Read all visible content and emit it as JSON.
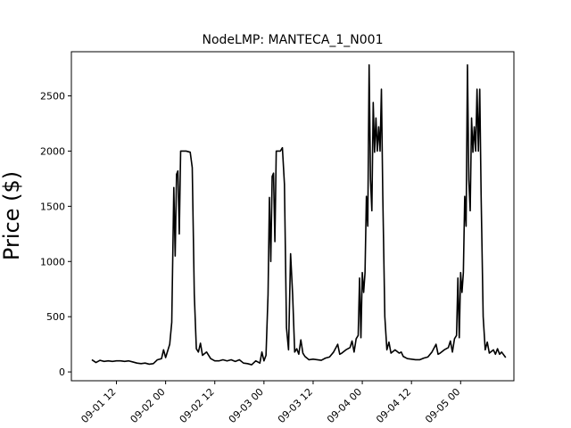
{
  "chart_data": {
    "type": "line",
    "title": "NodeLMP: MANTECA_1_N001",
    "xlabel": "",
    "ylabel": "Price ($)",
    "xlim": [
      "2020-09-01 01:00",
      "2020-09-05 13:00"
    ],
    "ylim": [
      -80,
      2900
    ],
    "yticks": [
      0,
      500,
      1000,
      1500,
      2000,
      2500
    ],
    "xticks": [
      "2020-09-01 12:00",
      "2020-09-02 00:00",
      "2020-09-02 12:00",
      "2020-09-03 00:00",
      "2020-09-03 12:00",
      "2020-09-04 00:00",
      "2020-09-04 12:00",
      "2020-09-05 00:00"
    ],
    "xtick_labels": [
      "09-01 12",
      "09-02 00",
      "09-02 12",
      "09-03 00",
      "09-03 12",
      "09-04 00",
      "09-04 12",
      "09-05 00"
    ],
    "grid": false,
    "series": [
      {
        "color": "#000000",
        "points": [
          [
            "2020-09-01 06:00",
            110
          ],
          [
            "2020-09-01 07:00",
            85
          ],
          [
            "2020-09-01 08:00",
            105
          ],
          [
            "2020-09-01 09:00",
            95
          ],
          [
            "2020-09-01 10:00",
            100
          ],
          [
            "2020-09-01 11:00",
            95
          ],
          [
            "2020-09-01 12:00",
            100
          ],
          [
            "2020-09-01 13:00",
            100
          ],
          [
            "2020-09-01 14:00",
            95
          ],
          [
            "2020-09-01 15:00",
            100
          ],
          [
            "2020-09-01 16:00",
            90
          ],
          [
            "2020-09-01 17:00",
            80
          ],
          [
            "2020-09-01 18:00",
            75
          ],
          [
            "2020-09-01 19:00",
            80
          ],
          [
            "2020-09-01 20:00",
            70
          ],
          [
            "2020-09-01 21:00",
            75
          ],
          [
            "2020-09-01 22:00",
            110
          ],
          [
            "2020-09-01 23:00",
            120
          ],
          [
            "2020-09-01 23:30",
            200
          ],
          [
            "2020-09-02 00:00",
            130
          ],
          [
            "2020-09-02 01:00",
            250
          ],
          [
            "2020-09-02 01:30",
            450
          ],
          [
            "2020-09-02 02:00",
            1670
          ],
          [
            "2020-09-02 02:20",
            1050
          ],
          [
            "2020-09-02 02:40",
            1790
          ],
          [
            "2020-09-02 03:00",
            1820
          ],
          [
            "2020-09-02 03:20",
            1250
          ],
          [
            "2020-09-02 03:40",
            2000
          ],
          [
            "2020-09-02 05:00",
            2000
          ],
          [
            "2020-09-02 06:00",
            1990
          ],
          [
            "2020-09-02 06:30",
            1850
          ],
          [
            "2020-09-02 07:00",
            700
          ],
          [
            "2020-09-02 07:30",
            210
          ],
          [
            "2020-09-02 08:00",
            180
          ],
          [
            "2020-09-02 08:30",
            260
          ],
          [
            "2020-09-02 09:00",
            150
          ],
          [
            "2020-09-02 10:00",
            180
          ],
          [
            "2020-09-02 11:00",
            120
          ],
          [
            "2020-09-02 12:00",
            100
          ],
          [
            "2020-09-02 13:00",
            100
          ],
          [
            "2020-09-02 14:00",
            110
          ],
          [
            "2020-09-02 15:00",
            100
          ],
          [
            "2020-09-02 16:00",
            110
          ],
          [
            "2020-09-02 17:00",
            95
          ],
          [
            "2020-09-02 18:00",
            110
          ],
          [
            "2020-09-02 19:00",
            80
          ],
          [
            "2020-09-02 20:00",
            75
          ],
          [
            "2020-09-02 21:00",
            65
          ],
          [
            "2020-09-02 22:00",
            100
          ],
          [
            "2020-09-02 23:00",
            80
          ],
          [
            "2020-09-02 23:30",
            180
          ],
          [
            "2020-09-03 00:00",
            100
          ],
          [
            "2020-09-03 00:30",
            150
          ],
          [
            "2020-09-03 01:00",
            700
          ],
          [
            "2020-09-03 01:20",
            1580
          ],
          [
            "2020-09-03 01:40",
            1000
          ],
          [
            "2020-09-03 02:00",
            1770
          ],
          [
            "2020-09-03 02:20",
            1800
          ],
          [
            "2020-09-03 02:40",
            1180
          ],
          [
            "2020-09-03 03:00",
            2000
          ],
          [
            "2020-09-03 04:00",
            2000
          ],
          [
            "2020-09-03 04:30",
            2030
          ],
          [
            "2020-09-03 05:00",
            1700
          ],
          [
            "2020-09-03 05:30",
            400
          ],
          [
            "2020-09-03 06:00",
            200
          ],
          [
            "2020-09-03 06:30",
            1070
          ],
          [
            "2020-09-03 07:00",
            700
          ],
          [
            "2020-09-03 07:30",
            180
          ],
          [
            "2020-09-03 08:00",
            210
          ],
          [
            "2020-09-03 08:30",
            160
          ],
          [
            "2020-09-03 09:00",
            290
          ],
          [
            "2020-09-03 09:30",
            170
          ],
          [
            "2020-09-03 10:00",
            140
          ],
          [
            "2020-09-03 11:00",
            110
          ],
          [
            "2020-09-03 12:00",
            115
          ],
          [
            "2020-09-03 13:00",
            110
          ],
          [
            "2020-09-03 14:00",
            105
          ],
          [
            "2020-09-03 15:00",
            125
          ],
          [
            "2020-09-03 16:00",
            135
          ],
          [
            "2020-09-03 17:00",
            180
          ],
          [
            "2020-09-03 18:00",
            250
          ],
          [
            "2020-09-03 18:30",
            160
          ],
          [
            "2020-09-03 19:00",
            170
          ],
          [
            "2020-09-03 20:00",
            200
          ],
          [
            "2020-09-03 21:00",
            220
          ],
          [
            "2020-09-03 21:30",
            280
          ],
          [
            "2020-09-03 22:00",
            180
          ],
          [
            "2020-09-03 22:30",
            300
          ],
          [
            "2020-09-03 23:00",
            330
          ],
          [
            "2020-09-03 23:20",
            850
          ],
          [
            "2020-09-03 23:40",
            310
          ],
          [
            "2020-09-04 00:00",
            900
          ],
          [
            "2020-09-04 00:20",
            720
          ],
          [
            "2020-09-04 00:40",
            900
          ],
          [
            "2020-09-04 01:00",
            1590
          ],
          [
            "2020-09-04 01:20",
            1320
          ],
          [
            "2020-09-04 01:40",
            2780
          ],
          [
            "2020-09-04 02:00",
            1740
          ],
          [
            "2020-09-04 02:20",
            1460
          ],
          [
            "2020-09-04 02:40",
            2440
          ],
          [
            "2020-09-04 03:00",
            1990
          ],
          [
            "2020-09-04 03:20",
            2300
          ],
          [
            "2020-09-04 03:40",
            2000
          ],
          [
            "2020-09-04 04:00",
            2220
          ],
          [
            "2020-09-04 04:20",
            2000
          ],
          [
            "2020-09-04 04:40",
            2560
          ],
          [
            "2020-09-04 05:00",
            1600
          ],
          [
            "2020-09-04 05:30",
            500
          ],
          [
            "2020-09-04 06:00",
            200
          ],
          [
            "2020-09-04 06:30",
            270
          ],
          [
            "2020-09-04 07:00",
            170
          ],
          [
            "2020-09-04 08:00",
            200
          ],
          [
            "2020-09-04 09:00",
            170
          ],
          [
            "2020-09-04 09:30",
            180
          ],
          [
            "2020-09-04 10:00",
            140
          ],
          [
            "2020-09-04 11:00",
            120
          ],
          [
            "2020-09-04 12:00",
            115
          ],
          [
            "2020-09-04 13:00",
            110
          ],
          [
            "2020-09-04 14:00",
            110
          ],
          [
            "2020-09-04 15:00",
            125
          ],
          [
            "2020-09-04 16:00",
            135
          ],
          [
            "2020-09-04 17:00",
            180
          ],
          [
            "2020-09-04 18:00",
            250
          ],
          [
            "2020-09-04 18:30",
            160
          ],
          [
            "2020-09-04 19:00",
            170
          ],
          [
            "2020-09-04 20:00",
            200
          ],
          [
            "2020-09-04 21:00",
            220
          ],
          [
            "2020-09-04 21:30",
            280
          ],
          [
            "2020-09-04 22:00",
            180
          ],
          [
            "2020-09-04 22:30",
            300
          ],
          [
            "2020-09-04 23:00",
            330
          ],
          [
            "2020-09-04 23:20",
            850
          ],
          [
            "2020-09-04 23:40",
            310
          ],
          [
            "2020-09-05 00:00",
            900
          ],
          [
            "2020-09-05 00:20",
            720
          ],
          [
            "2020-09-05 00:40",
            900
          ],
          [
            "2020-09-05 01:00",
            1590
          ],
          [
            "2020-09-05 01:20",
            1320
          ],
          [
            "2020-09-05 01:40",
            2780
          ],
          [
            "2020-09-05 02:00",
            1740
          ],
          [
            "2020-09-05 02:20",
            1460
          ],
          [
            "2020-09-05 02:40",
            2300
          ],
          [
            "2020-09-05 03:00",
            1990
          ],
          [
            "2020-09-05 03:20",
            2220
          ],
          [
            "2020-09-05 03:40",
            2000
          ],
          [
            "2020-09-05 04:00",
            2560
          ],
          [
            "2020-09-05 04:20",
            2000
          ],
          [
            "2020-09-05 04:40",
            2560
          ],
          [
            "2020-09-05 05:00",
            1600
          ],
          [
            "2020-09-05 05:30",
            500
          ],
          [
            "2020-09-05 06:00",
            200
          ],
          [
            "2020-09-05 06:30",
            270
          ],
          [
            "2020-09-05 07:00",
            170
          ],
          [
            "2020-09-05 08:00",
            200
          ],
          [
            "2020-09-05 08:30",
            160
          ],
          [
            "2020-09-05 09:00",
            210
          ],
          [
            "2020-09-05 09:30",
            160
          ],
          [
            "2020-09-05 10:00",
            180
          ],
          [
            "2020-09-05 11:00",
            130
          ]
        ]
      }
    ]
  }
}
